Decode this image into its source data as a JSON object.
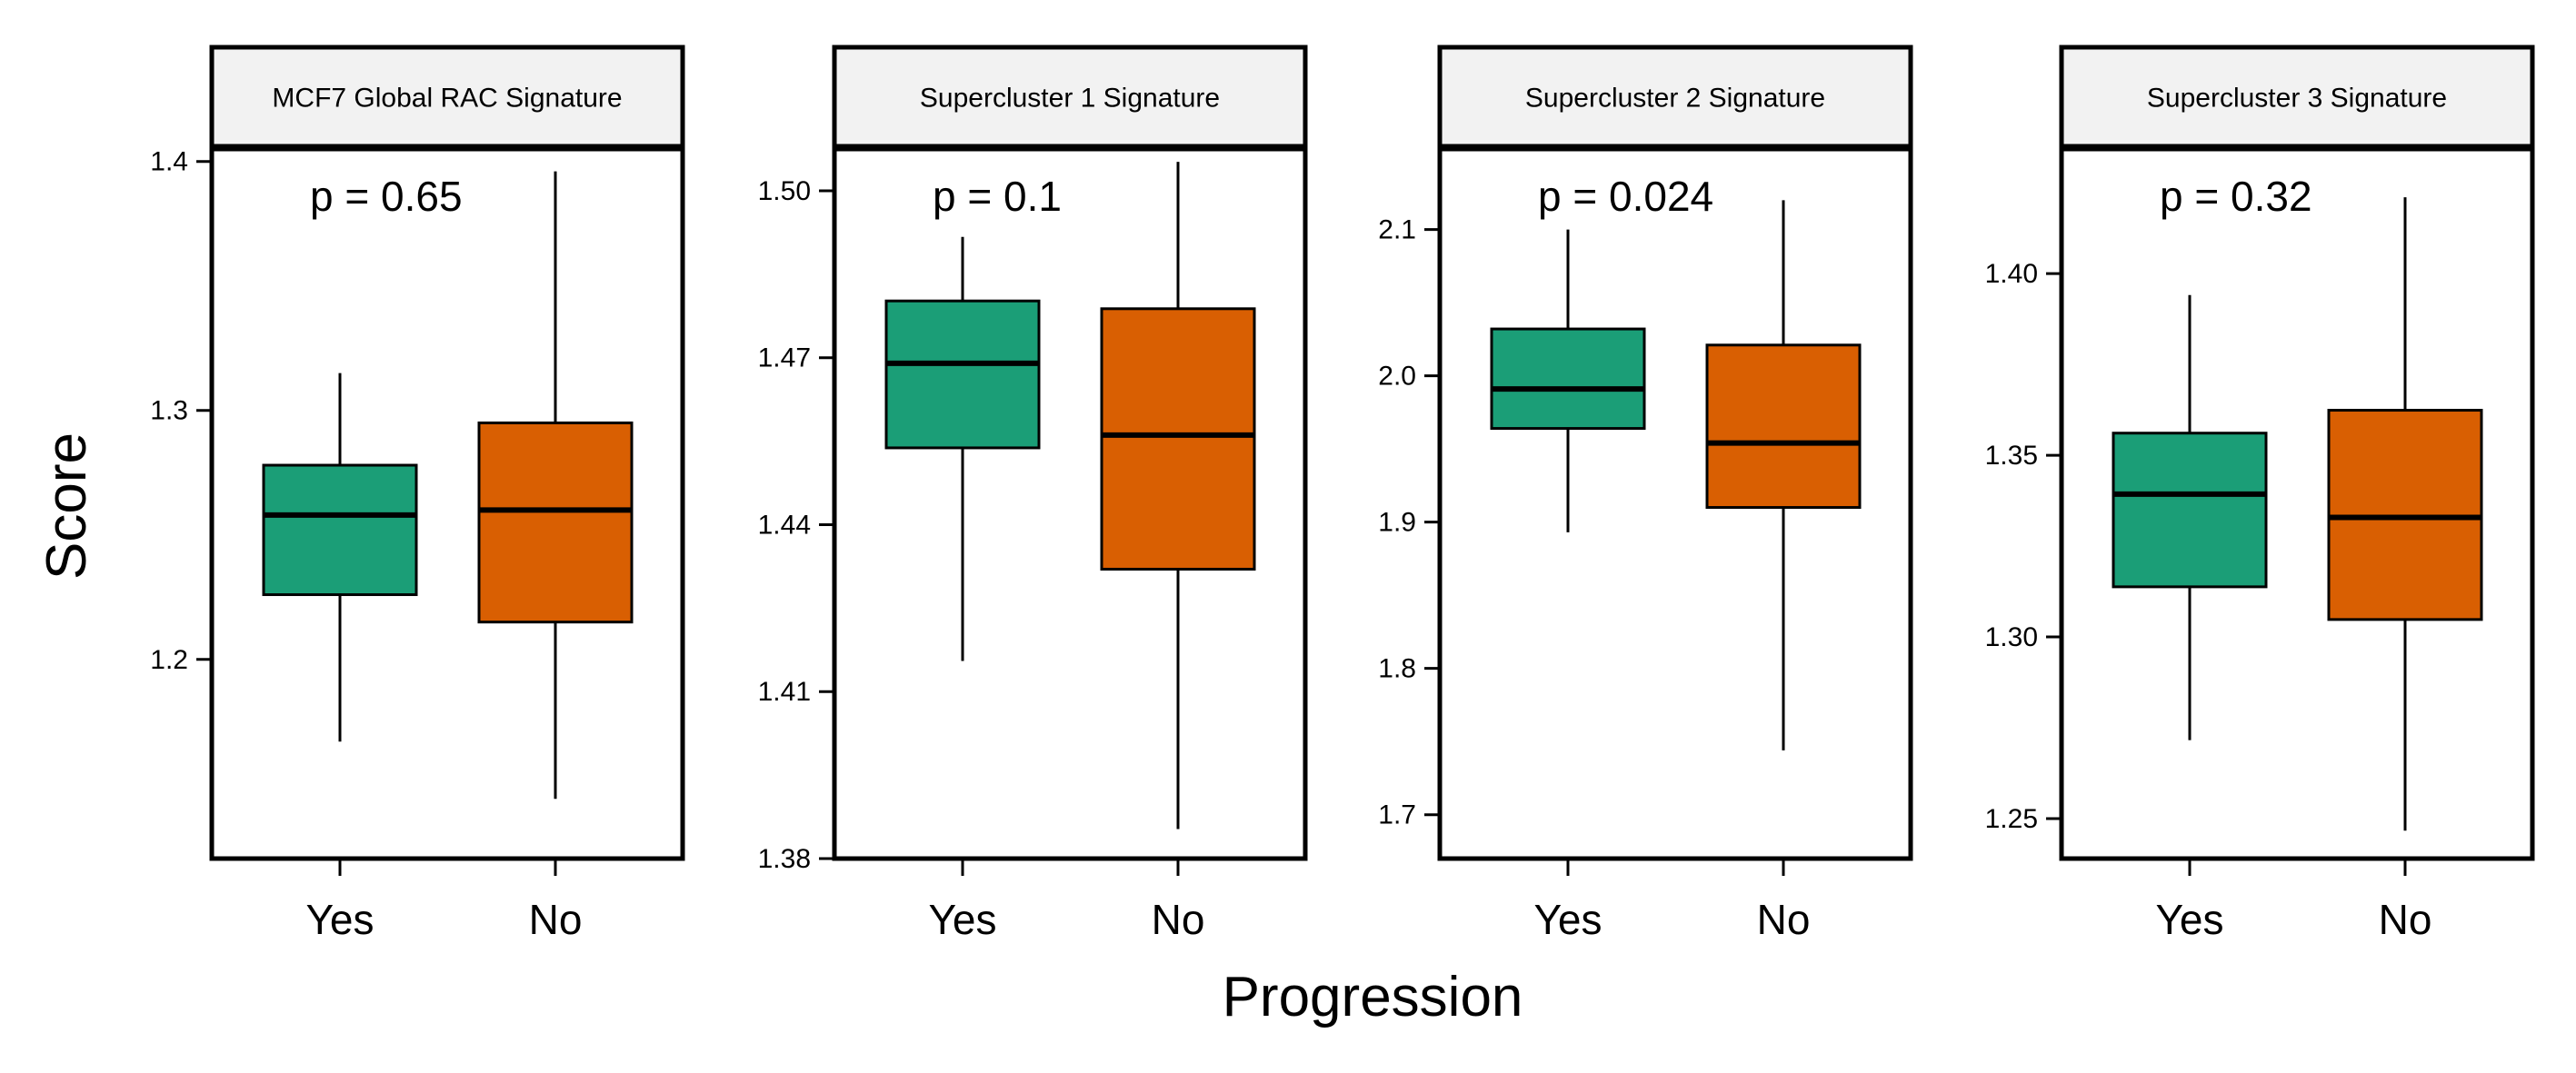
{
  "chart_data": {
    "type": "box",
    "xlabel": "Progression",
    "ylabel": "Score",
    "categories": [
      "Yes",
      "No"
    ],
    "colors": {
      "Yes": "#1b9e77",
      "No": "#d95f02"
    },
    "strip_color": "#f2f2f2",
    "legend": "none",
    "grid": false,
    "panels": [
      {
        "title": "MCF7 Global RAC Signature",
        "annotation": "p = 0.65",
        "ylim": [
          1.12,
          1.405
        ],
        "yticks": [
          "1.2",
          "1.3",
          "1.4"
        ],
        "boxes": [
          {
            "category": "Yes",
            "min": 1.167,
            "q1": 1.226,
            "median": 1.258,
            "q3": 1.278,
            "max": 1.315
          },
          {
            "category": "No",
            "min": 1.144,
            "q1": 1.215,
            "median": 1.26,
            "q3": 1.295,
            "max": 1.396
          }
        ]
      },
      {
        "title": "Supercluster 1 Signature",
        "annotation": "p = 0.1",
        "ylim": [
          1.38,
          1.5075
        ],
        "yticks": [
          "1.38",
          "1.41",
          "1.44",
          "1.47",
          "1.50"
        ],
        "boxes": [
          {
            "category": "Yes",
            "min": 1.4155,
            "q1": 1.4538,
            "median": 1.469,
            "q3": 1.4802,
            "max": 1.4917
          },
          {
            "category": "No",
            "min": 1.3853,
            "q1": 1.432,
            "median": 1.4561,
            "q3": 1.4788,
            "max": 1.5052
          }
        ]
      },
      {
        "title": "Supercluster 2 Signature",
        "annotation": "p = 0.024",
        "ylim": [
          1.67,
          2.155
        ],
        "yticks": [
          "1.7",
          "1.8",
          "1.9",
          "2.0",
          "2.1"
        ],
        "boxes": [
          {
            "category": "Yes",
            "min": 1.893,
            "q1": 1.964,
            "median": 1.991,
            "q3": 2.032,
            "max": 2.1
          },
          {
            "category": "No",
            "min": 1.744,
            "q1": 1.91,
            "median": 1.954,
            "q3": 2.021,
            "max": 2.12
          }
        ]
      },
      {
        "title": "Supercluster 3 Signature",
        "annotation": "p = 0.32",
        "ylim": [
          1.239,
          1.4343
        ],
        "yticks": [
          "1.25",
          "1.30",
          "1.35",
          "1.40"
        ],
        "boxes": [
          {
            "category": "Yes",
            "min": 1.2716,
            "q1": 1.3138,
            "median": 1.3393,
            "q3": 1.3561,
            "max": 1.3941
          },
          {
            "category": "No",
            "min": 1.2467,
            "q1": 1.3048,
            "median": 1.3329,
            "q3": 1.3624,
            "max": 1.421
          }
        ]
      }
    ]
  }
}
